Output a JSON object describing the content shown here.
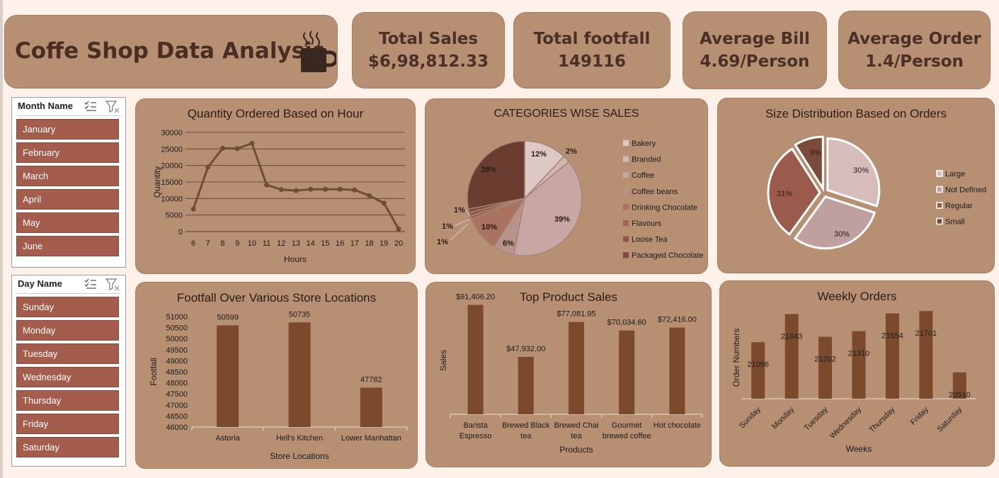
{
  "header": {
    "title": "Coffe Shop Data Analysis"
  },
  "kpis": [
    {
      "label": "Total Sales",
      "value": "$6,98,812.33"
    },
    {
      "label": "Total footfall",
      "value": "149116"
    },
    {
      "label": "Average Bill",
      "value": "4.69/Person"
    },
    {
      "label": "Average Order",
      "value": "1.4/Person"
    }
  ],
  "month_slicer": {
    "title": "Month Name",
    "items": [
      "January",
      "February",
      "March",
      "April",
      "May",
      "June"
    ]
  },
  "day_slicer": {
    "title": "Day Name",
    "items": [
      "Sunday",
      "Monday",
      "Tuesday",
      "Wednesday",
      "Thursday",
      "Friday",
      "Saturday"
    ]
  },
  "colors": {
    "page_bg": "#fdf1ea",
    "card_bg": "#b78f73",
    "slicer_item": "#a45c4c",
    "bar": "#7b4a2c",
    "line": "#6e4e37"
  },
  "chart_data": [
    {
      "type": "line",
      "title": "Quantity Ordered Based on Hour",
      "xlabel": "Hours",
      "ylabel": "Quantity",
      "x": [
        6,
        7,
        8,
        9,
        10,
        11,
        12,
        13,
        14,
        15,
        16,
        17,
        18,
        19,
        20
      ],
      "values": [
        6800,
        19500,
        25200,
        25100,
        26700,
        14100,
        12700,
        12400,
        12800,
        12800,
        12800,
        12600,
        10900,
        8600,
        800
      ],
      "ylim": [
        0,
        30000
      ],
      "yticks": [
        0,
        5000,
        10000,
        15000,
        20000,
        25000,
        30000
      ],
      "grid": true
    },
    {
      "type": "pie",
      "title": "CATEGORIES  WISE SALES",
      "legend_position": "right",
      "slices": [
        {
          "name": "Bakery",
          "value": 12,
          "label": "12%",
          "color": "#ddc8c6"
        },
        {
          "name": "Branded",
          "value": 2,
          "label": "2%",
          "color": "#d2b7b2"
        },
        {
          "name": "Coffee",
          "value": 39,
          "label": "39%",
          "color": "#c8a6a3"
        },
        {
          "name": "Coffee beans",
          "value": 6,
          "label": "6%",
          "color": "#b9928b"
        },
        {
          "name": "Drinking Chocolate",
          "value": 10,
          "label": "10%",
          "color": "#a9735f"
        },
        {
          "name": "Flavours",
          "value": 1,
          "label": "1%",
          "color": "#a16752"
        },
        {
          "name": "Loose Tea",
          "value": 1,
          "label": "1%",
          "color": "#8e5849"
        },
        {
          "name": "Packaged Chocolate",
          "value": 1,
          "label": "1%",
          "color": "#7c4a3a"
        },
        {
          "name": "",
          "value": 28,
          "label": "28%",
          "color": "#6b3c30"
        }
      ]
    },
    {
      "type": "pie",
      "title": "Size Distribution Based on Orders",
      "legend_position": "right",
      "slices": [
        {
          "name": "Large",
          "value": 30,
          "label": "30%",
          "color": "#d7bcbc"
        },
        {
          "name": "Not Defined",
          "value": 30,
          "label": "30%",
          "color": "#c0a09f"
        },
        {
          "name": "Regular",
          "value": 31,
          "label": "31%",
          "color": "#9a5b4c"
        },
        {
          "name": "Small",
          "value": 9,
          "label": "9%",
          "color": "#7a4a3c"
        }
      ]
    },
    {
      "type": "bar",
      "title": "Footfall Over Various Store Locations",
      "xlabel": "Store Locations",
      "ylabel": "Footfall",
      "categories": [
        "Astoria",
        "Hell's Kitchen",
        "Lower Manhattan"
      ],
      "values": [
        50599,
        50735,
        47782
      ],
      "labels": [
        "50599",
        "50735",
        "47782"
      ],
      "ylim": [
        46000,
        51000
      ],
      "yticks": [
        46000,
        46500,
        47000,
        47500,
        48000,
        48500,
        49000,
        49500,
        50000,
        50500,
        51000
      ]
    },
    {
      "type": "bar",
      "title": "Top Product Sales",
      "xlabel": "Products",
      "ylabel": "Sales",
      "categories": [
        [
          "Barista",
          "Espresso"
        ],
        [
          "Brewed Black",
          "tea"
        ],
        [
          "Brewed Chai",
          "tea"
        ],
        [
          "Gourmet",
          "brewed coffee"
        ],
        [
          "Hot chocolate"
        ]
      ],
      "values": [
        91406.2,
        47932.0,
        77081.95,
        70034.6,
        72416.0
      ],
      "labels": [
        "$91,406.20",
        "$47,932.00",
        "$77,081.95",
        "$70,034.60",
        "$72,416.00"
      ],
      "ylim": [
        0,
        100000
      ]
    },
    {
      "type": "bar",
      "title": "Weekly Orders",
      "xlabel": "Weeks",
      "ylabel": "Order Numbers",
      "categories": [
        "Sunday",
        "Monday",
        "Tuesday",
        "Wednesday",
        "Thursday",
        "Friday",
        "Saturday"
      ],
      "values": [
        21096,
        21643,
        21202,
        21310,
        21654,
        21701,
        20510
      ],
      "labels": [
        "21096",
        "21643",
        "21202",
        "21310",
        "21654",
        "21701",
        "20510"
      ],
      "ylim": [
        20000,
        21800
      ]
    }
  ]
}
